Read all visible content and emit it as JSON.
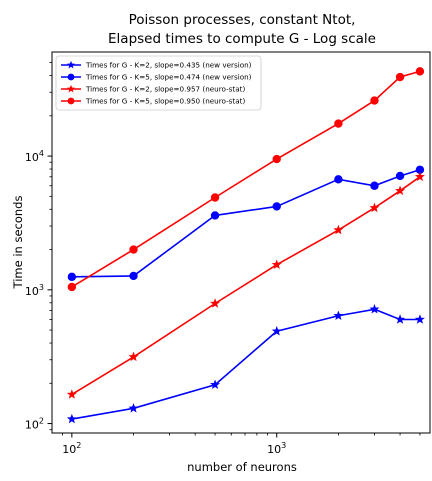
{
  "chart_data": {
    "type": "line",
    "title": "Poisson processes, constant Ntot,",
    "subtitle": "Elapsed times to compute G - Log scale",
    "xlabel": "number of neurons",
    "ylabel": "Time in seconds",
    "xscale": "log",
    "yscale": "log",
    "xlim": [
      80,
      5600
    ],
    "ylim": [
      85,
      60000
    ],
    "x_ticks": [
      {
        "value": 100,
        "base": "10",
        "exp": "2"
      },
      {
        "value": 1000,
        "base": "10",
        "exp": "3"
      }
    ],
    "y_ticks": [
      {
        "value": 100,
        "base": "10",
        "exp": "2"
      },
      {
        "value": 1000,
        "base": "10",
        "exp": "3"
      },
      {
        "value": 10000,
        "base": "10",
        "exp": "4"
      }
    ],
    "grid": false,
    "legend_position": "upper-left",
    "series": [
      {
        "name": "Times for G - K=2, slope=0.435 (new version)",
        "color": "#0000ff",
        "marker": "star",
        "x": [
          100,
          200,
          500,
          1000,
          2000,
          3000,
          4000,
          5000
        ],
        "y": [
          108,
          130,
          195,
          490,
          640,
          715,
          600,
          600
        ]
      },
      {
        "name": "Times for G - K=5, slope=0.474 (new version)",
        "color": "#0000ff",
        "marker": "circle",
        "x": [
          100,
          200,
          500,
          1000,
          2000,
          3000,
          4000,
          5000
        ],
        "y": [
          1250,
          1270,
          3600,
          4200,
          6700,
          6000,
          7100,
          7900
        ]
      },
      {
        "name": "Times for G - K=2, slope=0.957 (neuro-stat)",
        "color": "#ff0000",
        "marker": "star",
        "x": [
          100,
          200,
          500,
          1000,
          2000,
          3000,
          4000,
          5000
        ],
        "y": [
          165,
          315,
          790,
          1540,
          2800,
          4100,
          5500,
          7000
        ]
      },
      {
        "name": "Times for G - K=5, slope=0.950 (neuro-stat)",
        "color": "#ff0000",
        "marker": "circle",
        "x": [
          100,
          200,
          500,
          1000,
          2000,
          3000,
          4000,
          5000
        ],
        "y": [
          1050,
          2000,
          4900,
          9500,
          17500,
          26000,
          39000,
          43000
        ]
      }
    ]
  }
}
